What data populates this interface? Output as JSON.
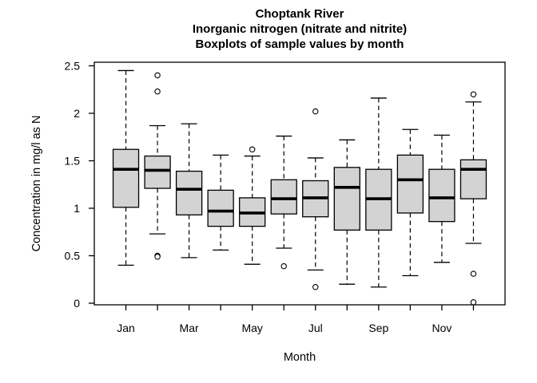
{
  "chart_data": {
    "type": "boxplot",
    "title_lines": [
      "Choptank River",
      "Inorganic nitrogen (nitrate and nitrite)",
      "Boxplots of sample values by month"
    ],
    "xlabel": "Month",
    "ylabel": "Concentration in mg/l as N",
    "ylim": [
      0,
      2.5
    ],
    "y_tick_values": [
      0,
      0.5,
      1,
      1.5,
      2,
      2.5
    ],
    "y_tick_labels": [
      "0",
      "0.5",
      "1",
      "1.5",
      "2",
      "2.5"
    ],
    "categories": [
      "Jan",
      "Feb",
      "Mar",
      "Apr",
      "May",
      "Jun",
      "Jul",
      "Aug",
      "Sep",
      "Oct",
      "Nov",
      "Dec"
    ],
    "x_tick_labels_shown": [
      "Jan",
      "Mar",
      "May",
      "Jul",
      "Sep",
      "Nov"
    ],
    "grid": "off",
    "box_fill": "#d3d3d3",
    "line_color": "#000000",
    "background": "#ffffff",
    "series": [
      {
        "month": "Jan",
        "whisker_low": 0.4,
        "q1": 1.01,
        "median": 1.41,
        "q3": 1.62,
        "whisker_high": 2.45,
        "outliers": []
      },
      {
        "month": "Feb",
        "whisker_low": 0.73,
        "q1": 1.21,
        "median": 1.4,
        "q3": 1.55,
        "whisker_high": 1.87,
        "outliers": [
          2.4,
          2.23,
          0.5,
          0.49
        ]
      },
      {
        "month": "Mar",
        "whisker_low": 0.48,
        "q1": 0.93,
        "median": 1.2,
        "q3": 1.39,
        "whisker_high": 1.89,
        "outliers": []
      },
      {
        "month": "Apr",
        "whisker_low": 0.56,
        "q1": 0.81,
        "median": 0.97,
        "q3": 1.19,
        "whisker_high": 1.56,
        "outliers": []
      },
      {
        "month": "May",
        "whisker_low": 0.41,
        "q1": 0.81,
        "median": 0.95,
        "q3": 1.11,
        "whisker_high": 1.55,
        "outliers": [
          1.62
        ]
      },
      {
        "month": "Jun",
        "whisker_low": 0.58,
        "q1": 0.94,
        "median": 1.1,
        "q3": 1.3,
        "whisker_high": 1.76,
        "outliers": [
          0.39
        ]
      },
      {
        "month": "Jul",
        "whisker_low": 0.35,
        "q1": 0.91,
        "median": 1.11,
        "q3": 1.29,
        "whisker_high": 1.53,
        "outliers": [
          2.02,
          0.17
        ]
      },
      {
        "month": "Aug",
        "whisker_low": 0.2,
        "q1": 0.77,
        "median": 1.22,
        "q3": 1.43,
        "whisker_high": 1.72,
        "outliers": []
      },
      {
        "month": "Sep",
        "whisker_low": 0.17,
        "q1": 0.77,
        "median": 1.1,
        "q3": 1.41,
        "whisker_high": 2.16,
        "outliers": []
      },
      {
        "month": "Oct",
        "whisker_low": 0.29,
        "q1": 0.95,
        "median": 1.3,
        "q3": 1.56,
        "whisker_high": 1.83,
        "outliers": []
      },
      {
        "month": "Nov",
        "whisker_low": 0.43,
        "q1": 0.86,
        "median": 1.11,
        "q3": 1.41,
        "whisker_high": 1.77,
        "outliers": []
      },
      {
        "month": "Dec",
        "whisker_low": 0.63,
        "q1": 1.1,
        "median": 1.41,
        "q3": 1.51,
        "whisker_high": 2.12,
        "outliers": [
          2.2,
          0.31,
          0.01
        ]
      }
    ]
  }
}
